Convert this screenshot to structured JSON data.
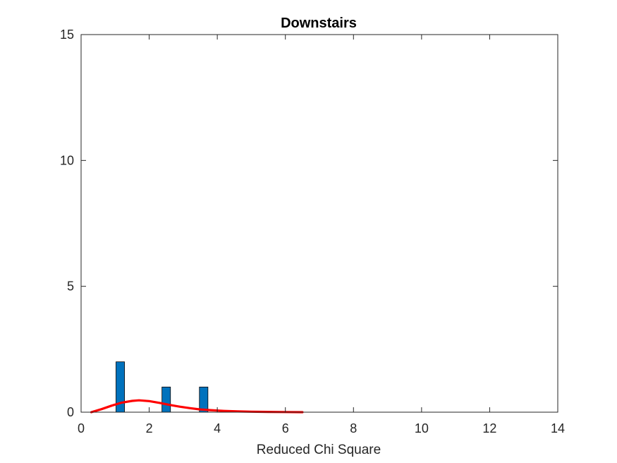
{
  "chart_data": {
    "type": "bar",
    "title": "Downstairs",
    "xlabel": "Reduced Chi Square",
    "ylabel": "",
    "xlim": [
      0,
      14
    ],
    "ylim": [
      0,
      15
    ],
    "xticks": [
      0,
      2,
      4,
      6,
      8,
      10,
      12,
      14
    ],
    "yticks": [
      0,
      5,
      10,
      15
    ],
    "grid": false,
    "bars": {
      "name": "",
      "color": "#0072BD",
      "bin_width": 0.25,
      "x": [
        1.15,
        2.5,
        3.6
      ],
      "values": [
        2,
        1,
        1
      ]
    },
    "fit_curve": {
      "name": "",
      "color": "#FF0000",
      "x": [
        0.3,
        0.6,
        0.9,
        1.2,
        1.5,
        1.7,
        2.0,
        2.3,
        2.6,
        2.9,
        3.2,
        3.5,
        3.8,
        4.2,
        4.6,
        5.0,
        5.5,
        6.0,
        6.5
      ],
      "y": [
        0.0,
        0.12,
        0.26,
        0.38,
        0.45,
        0.47,
        0.44,
        0.37,
        0.29,
        0.22,
        0.16,
        0.11,
        0.08,
        0.05,
        0.03,
        0.02,
        0.01,
        0.005,
        0.0
      ]
    }
  }
}
